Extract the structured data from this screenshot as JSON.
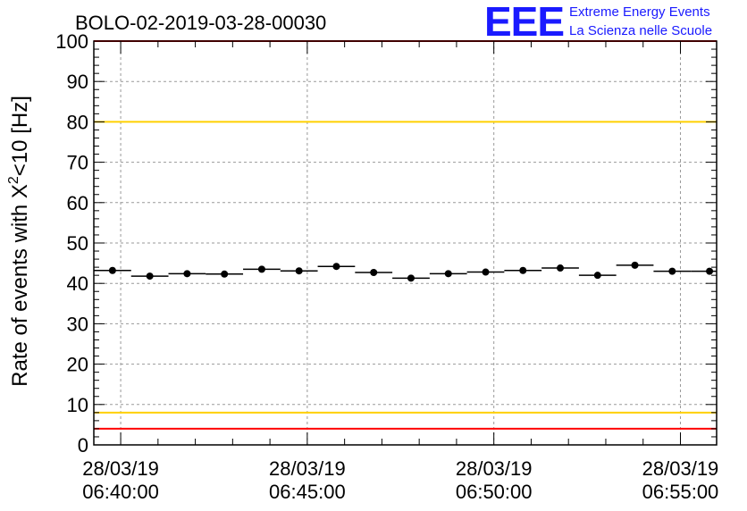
{
  "chart_data": {
    "type": "scatter",
    "title": "BOLO-02-2019-03-28-00030",
    "ylabel": "Rate of events with X²<10 [Hz]",
    "ylabel_parts": {
      "pre": "Rate of events with X",
      "sup": "2",
      "post": "<10 [Hz]"
    },
    "xlabel": "",
    "xlim_minutes": [
      -0.72,
      15.97
    ],
    "ylim": [
      0,
      100
    ],
    "yticks": [
      0,
      10,
      20,
      30,
      40,
      50,
      60,
      70,
      80,
      90,
      100
    ],
    "xticks": [
      {
        "minute": 0,
        "date": "28/03/19",
        "time": "06:40:00"
      },
      {
        "minute": 5,
        "date": "28/03/19",
        "time": "06:45:00"
      },
      {
        "minute": 10,
        "date": "28/03/19",
        "time": "06:50:00"
      },
      {
        "minute": 15,
        "date": "28/03/19",
        "time": "06:55:00"
      }
    ],
    "bin_width_minutes": 1.0,
    "x_minutes": [
      -0.22,
      0.78,
      1.78,
      2.78,
      3.78,
      4.78,
      5.78,
      6.78,
      7.78,
      8.78,
      9.78,
      10.78,
      11.78,
      12.78,
      13.78,
      14.78,
      15.78
    ],
    "values": [
      43.2,
      41.8,
      42.4,
      42.3,
      43.5,
      43.1,
      44.2,
      42.7,
      41.3,
      42.4,
      42.8,
      43.2,
      43.8,
      42.0,
      44.5,
      43.0,
      43.0
    ],
    "reference_lines": [
      {
        "y": 100,
        "color": "#ff0000"
      },
      {
        "y": 80,
        "color": "#ffd000"
      },
      {
        "y": 8,
        "color": "#ffd000"
      },
      {
        "y": 4,
        "color": "#ff0000"
      }
    ],
    "grid": true
  },
  "logo": {
    "mark": "EEE",
    "line1": "Extreme Energy Events",
    "line2": "La Scienza nelle Scuole",
    "color": "#1a1aff"
  }
}
